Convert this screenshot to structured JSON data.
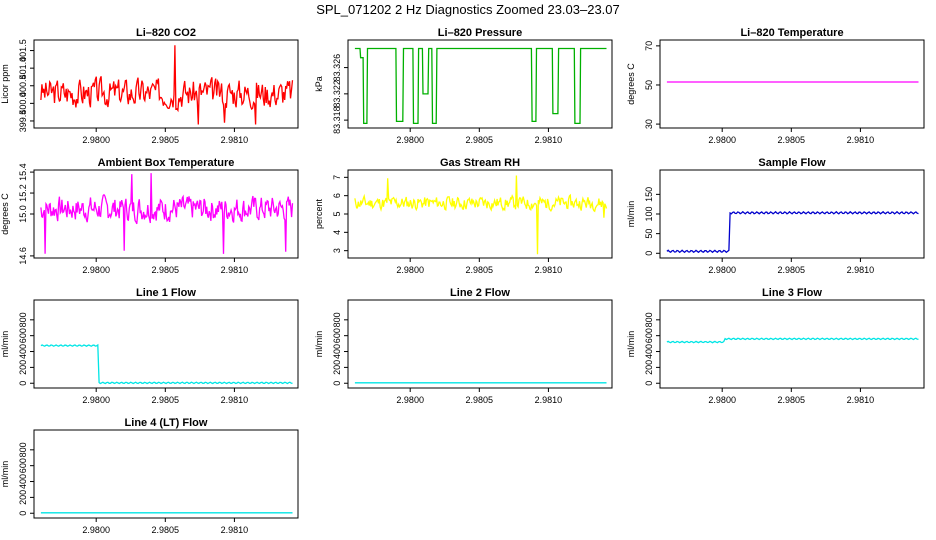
{
  "title": "SPL_071202  2 Hz Diagnostics Zoomed 23.03–23.07",
  "chart_data": [
    {
      "id": "co2",
      "type": "line",
      "title": "Li–820 CO2",
      "ylabel": "Licor ppm",
      "color": "#ff0000",
      "xlim": [
        2.97955,
        2.98146
      ],
      "xticks": [
        2.98,
        2.9805,
        2.981
      ],
      "xtick_labels": [
        "2.9800",
        "2.9805",
        "2.9810"
      ],
      "ylim": [
        399.3,
        401.8
      ],
      "yticks": [
        399.5,
        400,
        400.5,
        401,
        401.5
      ],
      "ytick_labels": [
        "399.5",
        "400.0",
        "400.5",
        "401.0",
        "401.5"
      ],
      "signal": {
        "kind": "noise",
        "base": 400.3,
        "amp": 0.45,
        "seed": 3,
        "n": 260,
        "x0": 2.9796,
        "x1": 2.98142,
        "spikes": [
          [
            2.98057,
            401.65
          ],
          [
            2.98074,
            399.4
          ],
          [
            2.98115,
            399.4
          ],
          [
            2.98093,
            399.45
          ]
        ]
      }
    },
    {
      "id": "pressure",
      "type": "line",
      "title": "Li–820 Pressure",
      "ylabel": "kPa",
      "color": "#00b000",
      "xlim": [
        2.97955,
        2.98146
      ],
      "xticks": [
        2.98,
        2.9805,
        2.981
      ],
      "xtick_labels": [
        "2.9800",
        "2.9805",
        "2.9810"
      ],
      "ylim": [
        83.3168,
        83.3302
      ],
      "yticks": [
        83.318,
        83.322,
        83.326
      ],
      "ytick_labels": [
        "83.318",
        "83.322",
        "83.326"
      ],
      "signal": {
        "kind": "steps",
        "high": 83.3289,
        "low": 83.3175,
        "x0": 2.9796,
        "x1": 2.98142,
        "dips": [
          [
            2.97964,
            2.97967,
            83.3275
          ],
          [
            2.97966,
            2.97969,
            83.3175
          ],
          [
            2.9799,
            2.97995,
            83.3178
          ],
          [
            2.98002,
            2.98006,
            83.3175
          ],
          [
            2.98009,
            2.98013,
            83.322
          ],
          [
            2.98016,
            2.98019,
            83.3175
          ],
          [
            2.98088,
            2.98091,
            83.3178
          ],
          [
            2.98103,
            2.98107,
            83.319
          ],
          [
            2.98119,
            2.98123,
            83.3175
          ]
        ]
      }
    },
    {
      "id": "li820temp",
      "type": "line",
      "title": "Li–820 Temperature",
      "ylabel": "degrees C",
      "color": "#ff00ff",
      "xlim": [
        2.97955,
        2.98146
      ],
      "xticks": [
        2.98,
        2.9805,
        2.981
      ],
      "xtick_labels": [
        "2.9800",
        "2.9805",
        "2.9810"
      ],
      "ylim": [
        28,
        73
      ],
      "yticks": [
        30,
        50,
        70
      ],
      "ytick_labels": [
        "30",
        "50",
        "70"
      ],
      "signal": {
        "kind": "flat",
        "value": 51.5,
        "x0": 2.9796,
        "x1": 2.98142
      }
    },
    {
      "id": "ambtemp",
      "type": "line",
      "title": "Ambient Box Temperature",
      "ylabel": "degrees C",
      "color": "#ff00ff",
      "xlim": [
        2.97955,
        2.98146
      ],
      "xticks": [
        2.98,
        2.9805,
        2.981
      ],
      "xtick_labels": [
        "2.9800",
        "2.9805",
        "2.9810"
      ],
      "ylim": [
        14.58,
        15.42
      ],
      "yticks": [
        14.6,
        15.0,
        15.2,
        15.4
      ],
      "ytick_labels": [
        "14.6",
        "15.0",
        "15.2",
        "15.4"
      ],
      "signal": {
        "kind": "noise",
        "base": 15.05,
        "amp": 0.13,
        "seed": 7,
        "n": 300,
        "x0": 2.9796,
        "x1": 2.98142,
        "spikes": [
          [
            2.98026,
            15.38
          ],
          [
            2.9804,
            15.39
          ],
          [
            2.9802,
            14.65
          ],
          [
            2.97963,
            14.62
          ],
          [
            2.98092,
            14.62
          ],
          [
            2.98137,
            14.64
          ]
        ]
      }
    },
    {
      "id": "rh",
      "type": "line",
      "title": "Gas Stream RH",
      "ylabel": "percent",
      "color": "#ffff00",
      "xlim": [
        2.97955,
        2.98146
      ],
      "xticks": [
        2.98,
        2.9805,
        2.981
      ],
      "xtick_labels": [
        "2.9800",
        "2.9805",
        "2.9810"
      ],
      "ylim": [
        2.6,
        7.4
      ],
      "yticks": [
        3,
        4,
        5,
        6,
        7
      ],
      "ytick_labels": [
        "3",
        "4",
        "5",
        "6",
        "7"
      ],
      "signal": {
        "kind": "noise",
        "base": 5.6,
        "amp": 0.4,
        "seed": 11,
        "n": 300,
        "x0": 2.9796,
        "x1": 2.98142,
        "spikes": [
          [
            2.98077,
            7.1
          ],
          [
            2.98092,
            2.8
          ],
          [
            2.97984,
            6.95
          ],
          [
            2.9814,
            4.8
          ]
        ]
      }
    },
    {
      "id": "sampleflow",
      "type": "line",
      "title": "Sample Flow",
      "ylabel": "ml/min",
      "color": "#0000cc",
      "xlim": [
        2.97955,
        2.98146
      ],
      "xticks": [
        2.98,
        2.9805,
        2.981
      ],
      "xtick_labels": [
        "2.9800",
        "2.9805",
        "2.9810"
      ],
      "ylim": [
        -12,
        212
      ],
      "yticks": [
        0,
        50,
        100,
        150
      ],
      "ytick_labels": [
        "0",
        "50",
        "100",
        "150"
      ],
      "signal": {
        "kind": "stepchange",
        "before": 5,
        "after": 103,
        "at": 2.98005,
        "ripple": 2.5,
        "x0": 2.9796,
        "x1": 2.98142
      }
    },
    {
      "id": "line1",
      "type": "line",
      "title": "Line 1 Flow",
      "ylabel": "ml/min",
      "color": "#00e5e5",
      "xlim": [
        2.97955,
        2.98146
      ],
      "xticks": [
        2.98,
        2.9805,
        2.981
      ],
      "xtick_labels": [
        "2.9800",
        "2.9805",
        "2.9810"
      ],
      "ylim": [
        -60,
        1050
      ],
      "yticks": [
        0,
        200,
        400,
        600,
        800
      ],
      "ytick_labels": [
        "0",
        "200",
        "400",
        "600",
        "800"
      ],
      "signal": {
        "kind": "stepchange",
        "before": 475,
        "after": 5,
        "at": 2.98002,
        "ripple": 8,
        "x0": 2.9796,
        "x1": 2.98142
      }
    },
    {
      "id": "line2",
      "type": "line",
      "title": "Line 2 Flow",
      "ylabel": "ml/min",
      "color": "#00e5e5",
      "xlim": [
        2.97955,
        2.98146
      ],
      "xticks": [
        2.98,
        2.9805,
        2.981
      ],
      "xtick_labels": [
        "2.9800",
        "2.9805",
        "2.9810"
      ],
      "ylim": [
        -60,
        1050
      ],
      "yticks": [
        0,
        200,
        400,
        600,
        800
      ],
      "ytick_labels": [
        "0",
        "200",
        "400",
        "600",
        "800"
      ],
      "signal": {
        "kind": "flat",
        "value": 5,
        "x0": 2.9796,
        "x1": 2.98142
      }
    },
    {
      "id": "line3",
      "type": "line",
      "title": "Line 3 Flow",
      "ylabel": "ml/min",
      "color": "#00e5e5",
      "xlim": [
        2.97955,
        2.98146
      ],
      "xticks": [
        2.98,
        2.9805,
        2.981
      ],
      "xtick_labels": [
        "2.9800",
        "2.9805",
        "2.9810"
      ],
      "ylim": [
        -60,
        1050
      ],
      "yticks": [
        0,
        200,
        400,
        600,
        800
      ],
      "ytick_labels": [
        "0",
        "200",
        "400",
        "600",
        "800"
      ],
      "signal": {
        "kind": "stepchange",
        "before": 520,
        "after": 560,
        "at": 2.98002,
        "ripple": 8,
        "x0": 2.9796,
        "x1": 2.98142
      }
    },
    {
      "id": "line4",
      "type": "line",
      "title": "Line 4 (LT) Flow",
      "ylabel": "ml/min",
      "color": "#00e5e5",
      "xlim": [
        2.97955,
        2.98146
      ],
      "xticks": [
        2.98,
        2.9805,
        2.981
      ],
      "xtick_labels": [
        "2.9800",
        "2.9805",
        "2.9810"
      ],
      "ylim": [
        -60,
        1050
      ],
      "yticks": [
        0,
        200,
        400,
        600,
        800
      ],
      "ytick_labels": [
        "0",
        "200",
        "400",
        "600",
        "800"
      ],
      "signal": {
        "kind": "flat",
        "value": 5,
        "x0": 2.9796,
        "x1": 2.98142
      }
    }
  ]
}
